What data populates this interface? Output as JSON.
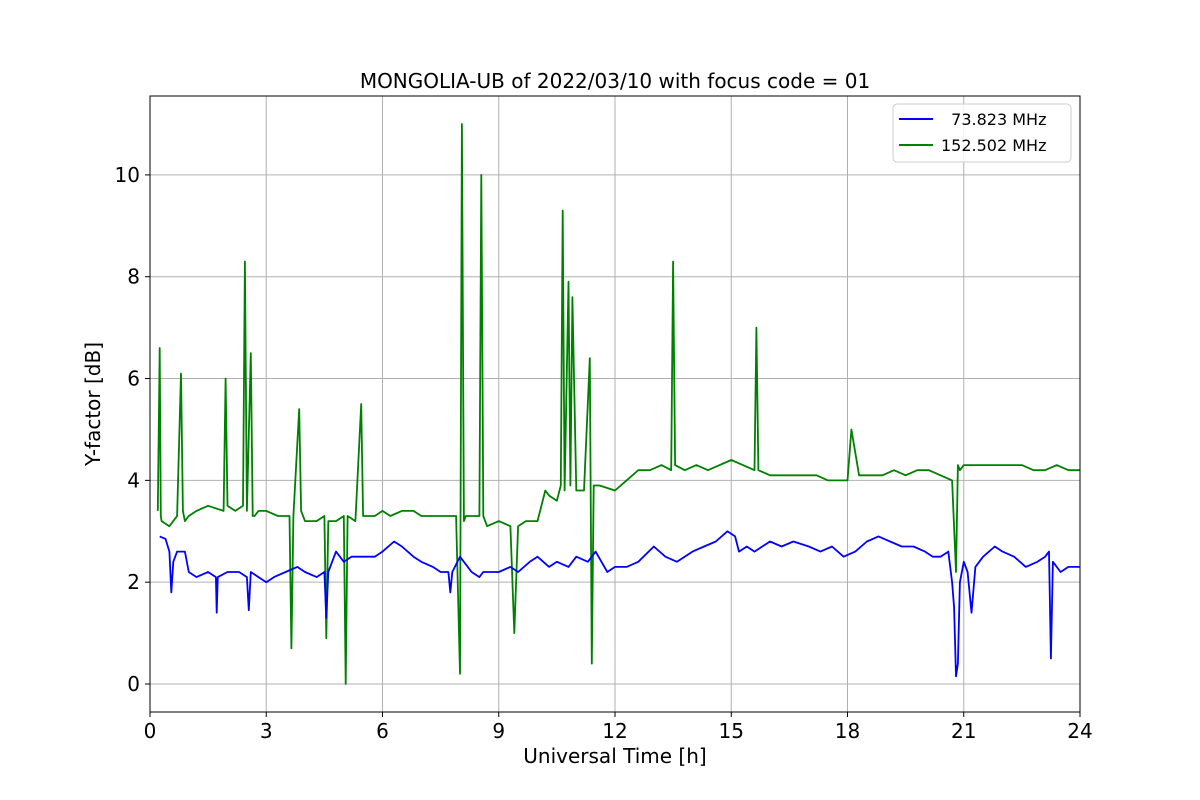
{
  "chart_data": {
    "type": "line",
    "title": "MONGOLIA-UB of 2022/03/10 with focus code = 01",
    "xlabel": "Universal Time [h]",
    "ylabel": "Y-factor [dB]",
    "xlim": [
      0,
      24
    ],
    "ylim": [
      -0.55,
      11.55
    ],
    "x_ticks": [
      0,
      3,
      6,
      9,
      12,
      15,
      18,
      21,
      24
    ],
    "y_ticks": [
      0,
      2,
      4,
      6,
      8,
      10
    ],
    "x_tick_labels": [
      "0",
      "3",
      "6",
      "9",
      "12",
      "15",
      "18",
      "21",
      "24"
    ],
    "y_tick_labels": [
      "0",
      "2",
      "4",
      "6",
      "8",
      "10"
    ],
    "grid": true,
    "legend_position": "top-right",
    "series": [
      {
        "name": "  73.823 MHz",
        "color": "#0000ff",
        "x": [
          0.25,
          0.4,
          0.5,
          0.55,
          0.6,
          0.7,
          0.9,
          1.0,
          1.2,
          1.5,
          1.7,
          1.72,
          1.75,
          2.0,
          2.3,
          2.5,
          2.55,
          2.6,
          2.8,
          3.0,
          3.2,
          3.5,
          3.8,
          4.0,
          4.3,
          4.5,
          4.55,
          4.6,
          4.8,
          5.0,
          5.2,
          5.5,
          5.8,
          6.0,
          6.3,
          6.5,
          6.8,
          7.0,
          7.3,
          7.5,
          7.7,
          7.75,
          7.8,
          8.0,
          8.3,
          8.5,
          8.6,
          8.8,
          9.0,
          9.3,
          9.5,
          9.8,
          10.0,
          10.3,
          10.5,
          10.8,
          11.0,
          11.3,
          11.5,
          11.8,
          12.0,
          12.3,
          12.6,
          13.0,
          13.3,
          13.6,
          14.0,
          14.3,
          14.6,
          14.9,
          15.1,
          15.2,
          15.4,
          15.6,
          15.8,
          16.0,
          16.3,
          16.6,
          17.0,
          17.3,
          17.6,
          17.9,
          18.2,
          18.5,
          18.8,
          19.1,
          19.4,
          19.7,
          20.0,
          20.2,
          20.4,
          20.6,
          20.7,
          20.75,
          20.8,
          20.85,
          20.9,
          21.0,
          21.1,
          21.2,
          21.3,
          21.5,
          21.8,
          22.0,
          22.3,
          22.6,
          22.9,
          23.1,
          23.2,
          23.25,
          23.3,
          23.5,
          23.7,
          24.0
        ],
        "y": [
          2.9,
          2.85,
          2.6,
          1.8,
          2.4,
          2.6,
          2.6,
          2.2,
          2.1,
          2.2,
          2.1,
          1.4,
          2.1,
          2.2,
          2.2,
          2.1,
          1.45,
          2.2,
          2.1,
          2.0,
          2.1,
          2.2,
          2.3,
          2.2,
          2.1,
          2.2,
          1.3,
          2.2,
          2.6,
          2.4,
          2.5,
          2.5,
          2.5,
          2.6,
          2.8,
          2.7,
          2.5,
          2.4,
          2.3,
          2.2,
          2.2,
          1.8,
          2.2,
          2.5,
          2.2,
          2.1,
          2.2,
          2.2,
          2.2,
          2.3,
          2.2,
          2.4,
          2.5,
          2.3,
          2.4,
          2.3,
          2.5,
          2.4,
          2.6,
          2.2,
          2.3,
          2.3,
          2.4,
          2.7,
          2.5,
          2.4,
          2.6,
          2.7,
          2.8,
          3.0,
          2.9,
          2.6,
          2.7,
          2.6,
          2.7,
          2.8,
          2.7,
          2.8,
          2.7,
          2.6,
          2.7,
          2.5,
          2.6,
          2.8,
          2.9,
          2.8,
          2.7,
          2.7,
          2.6,
          2.5,
          2.5,
          2.6,
          2.0,
          1.5,
          0.15,
          0.4,
          2.0,
          2.4,
          2.2,
          1.4,
          2.3,
          2.5,
          2.7,
          2.6,
          2.5,
          2.3,
          2.4,
          2.5,
          2.6,
          0.5,
          2.4,
          2.2,
          2.3,
          2.3
        ]
      },
      {
        "name": "152.502 MHz",
        "color": "#008000",
        "x": [
          0.2,
          0.25,
          0.28,
          0.3,
          0.5,
          0.7,
          0.8,
          0.85,
          0.9,
          1.0,
          1.2,
          1.5,
          1.9,
          1.95,
          2.0,
          2.2,
          2.4,
          2.45,
          2.5,
          2.6,
          2.65,
          2.7,
          2.8,
          3.0,
          3.3,
          3.6,
          3.65,
          3.7,
          3.85,
          3.9,
          4.0,
          4.3,
          4.5,
          4.55,
          4.6,
          4.8,
          5.0,
          5.05,
          5.1,
          5.3,
          5.45,
          5.5,
          5.8,
          6.0,
          6.2,
          6.5,
          6.8,
          7.0,
          7.3,
          7.6,
          7.9,
          8.0,
          8.05,
          8.1,
          8.15,
          8.3,
          8.5,
          8.55,
          8.6,
          8.7,
          9.0,
          9.3,
          9.4,
          9.5,
          9.7,
          10.0,
          10.2,
          10.3,
          10.5,
          10.6,
          10.65,
          10.7,
          10.8,
          10.85,
          10.9,
          11.0,
          11.2,
          11.35,
          11.4,
          11.45,
          11.6,
          12.0,
          12.3,
          12.6,
          12.9,
          13.2,
          13.45,
          13.5,
          13.55,
          13.8,
          14.1,
          14.4,
          14.7,
          15.0,
          15.3,
          15.6,
          15.65,
          15.7,
          16.0,
          16.3,
          16.6,
          16.9,
          17.2,
          17.5,
          17.8,
          18.0,
          18.1,
          18.3,
          18.6,
          18.9,
          19.2,
          19.5,
          19.8,
          20.1,
          20.4,
          20.7,
          20.8,
          20.85,
          20.9,
          21.0,
          21.3,
          21.6,
          21.9,
          22.2,
          22.5,
          22.8,
          23.1,
          23.4,
          23.7,
          24.0
        ],
        "y": [
          3.4,
          6.6,
          3.3,
          3.2,
          3.1,
          3.3,
          6.1,
          3.4,
          3.2,
          3.3,
          3.4,
          3.5,
          3.4,
          6.0,
          3.5,
          3.4,
          3.5,
          8.3,
          3.4,
          6.5,
          3.3,
          3.3,
          3.4,
          3.4,
          3.3,
          3.3,
          0.7,
          3.3,
          5.4,
          3.4,
          3.2,
          3.2,
          3.3,
          0.9,
          3.2,
          3.2,
          3.3,
          0.0,
          3.3,
          3.2,
          5.5,
          3.3,
          3.3,
          3.4,
          3.3,
          3.4,
          3.4,
          3.3,
          3.3,
          3.3,
          3.3,
          0.2,
          11.0,
          3.2,
          3.3,
          3.3,
          3.3,
          10.0,
          3.3,
          3.1,
          3.2,
          3.1,
          1.0,
          3.1,
          3.2,
          3.2,
          3.8,
          3.7,
          3.6,
          3.9,
          9.3,
          3.8,
          7.9,
          3.9,
          7.6,
          3.8,
          3.8,
          6.4,
          0.4,
          3.9,
          3.9,
          3.8,
          4.0,
          4.2,
          4.2,
          4.3,
          4.2,
          8.3,
          4.3,
          4.2,
          4.3,
          4.2,
          4.3,
          4.4,
          4.3,
          4.2,
          7.0,
          4.2,
          4.1,
          4.1,
          4.1,
          4.1,
          4.1,
          4.0,
          4.0,
          4.0,
          5.0,
          4.1,
          4.1,
          4.1,
          4.2,
          4.1,
          4.2,
          4.2,
          4.1,
          4.0,
          2.2,
          4.3,
          4.2,
          4.3,
          4.3,
          4.3,
          4.3,
          4.3,
          4.3,
          4.2,
          4.2,
          4.3,
          4.2,
          4.2
        ]
      }
    ]
  }
}
